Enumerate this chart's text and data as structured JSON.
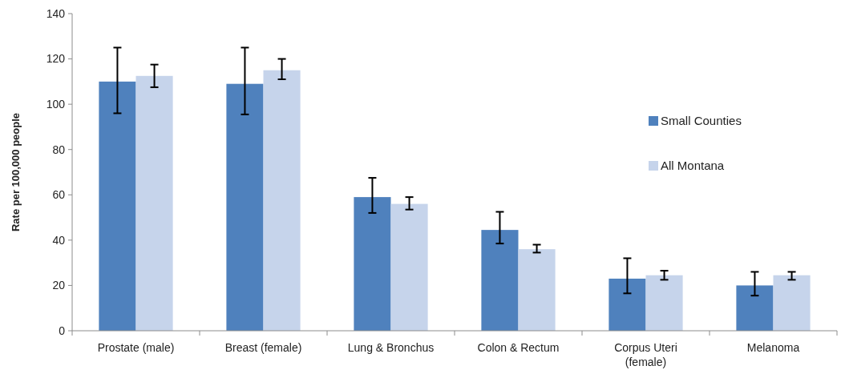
{
  "chart_data": {
    "type": "bar",
    "ylabel": "Rate per 100,000 people",
    "categories": [
      "Prostate (male)",
      "Breast (female)",
      "Lung & Bronchus",
      "Colon & Rectum",
      "Corpus Uteri (female)",
      "Melanoma"
    ],
    "series": [
      {
        "name": "Small Counties",
        "color": "#4f81bd",
        "values": [
          110,
          109,
          59,
          44.5,
          23,
          20
        ],
        "errors": [
          [
            96,
            125
          ],
          [
            95.5,
            125
          ],
          [
            52,
            67.5
          ],
          [
            38.5,
            52.5
          ],
          [
            16.5,
            32
          ],
          [
            15.5,
            26
          ]
        ]
      },
      {
        "name": "All Montana",
        "color": "#c6d4eb",
        "values": [
          112.5,
          115,
          56,
          36,
          24.5,
          24.5
        ],
        "errors": [
          [
            107.5,
            117.5
          ],
          [
            111,
            120
          ],
          [
            53.5,
            59
          ],
          [
            34.5,
            38
          ],
          [
            22.5,
            26.5
          ],
          [
            22.5,
            26
          ]
        ]
      }
    ],
    "ylim": [
      0,
      140
    ],
    "yticks": [
      0,
      20,
      40,
      60,
      80,
      100,
      120,
      140
    ],
    "legend": "right",
    "grid": false
  }
}
